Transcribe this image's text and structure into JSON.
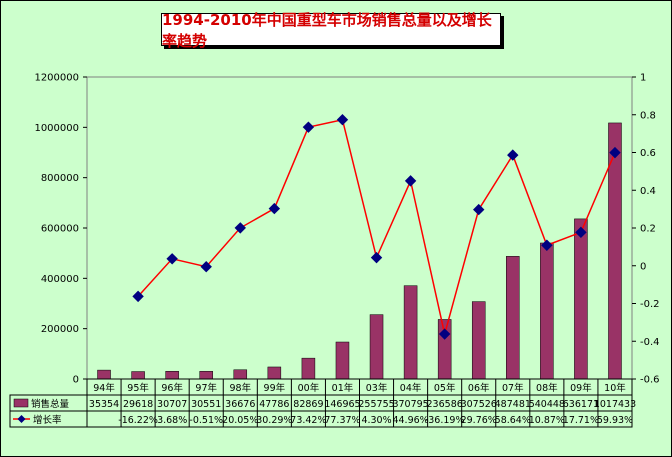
{
  "chart_data": {
    "type": "bar+line",
    "title": "1994-2010年中国重型车市场销售总量以及增长率趋势",
    "categories": [
      "94年",
      "95年",
      "96年",
      "97年",
      "98年",
      "99年",
      "00年",
      "01年",
      "03年",
      "04年",
      "05年",
      "06年",
      "07年",
      "08年",
      "09年",
      "10年"
    ],
    "series": [
      {
        "name": "销售总量",
        "type": "bar",
        "axis": "left",
        "color": "#993366",
        "values": [
          35354,
          29618,
          30707,
          30551,
          36676,
          47786,
          82869,
          146965,
          255755,
          370795,
          236586,
          307526,
          487481,
          540448,
          636171,
          1017433
        ]
      },
      {
        "name": "增长率",
        "type": "line",
        "axis": "right",
        "color": "#ff0000",
        "marker_color": "#000080",
        "values": [
          null,
          -0.1622,
          0.0368,
          -0.0051,
          0.2005,
          0.3029,
          0.7342,
          0.7737,
          0.043,
          0.4496,
          -0.3619,
          0.2976,
          0.5864,
          0.1087,
          0.1771,
          0.5993
        ]
      }
    ],
    "table_rows": [
      {
        "label": "销售总量",
        "cells": [
          "35354",
          "29618",
          "30707",
          "30551",
          "36676",
          "47786",
          "82869",
          "146965",
          "255755",
          "370795",
          "236586",
          "307526",
          "487481",
          "540448",
          "636171",
          "1017433"
        ]
      },
      {
        "label": "增长率",
        "cells": [
          "",
          "-16.22%",
          "3.68%",
          "-0.51%",
          "20.05%",
          "30.29%",
          "73.42%",
          "77.37%",
          "4.30%",
          "44.96%",
          "-36.19%",
          "29.76%",
          "58.64%",
          "10.87%",
          "17.71%",
          "59.93%"
        ]
      }
    ],
    "y_left": {
      "min": 0,
      "max": 1200000,
      "ticks": [
        "0",
        "200000",
        "400000",
        "600000",
        "800000",
        "1000000",
        "1200000"
      ]
    },
    "y_right": {
      "min": -0.6,
      "max": 1,
      "ticks": [
        "-0.6",
        "-0.4",
        "-0.2",
        "0",
        "0.2",
        "0.4",
        "0.6",
        "0.8",
        "1"
      ]
    },
    "grid": false,
    "legend": "data-table"
  }
}
